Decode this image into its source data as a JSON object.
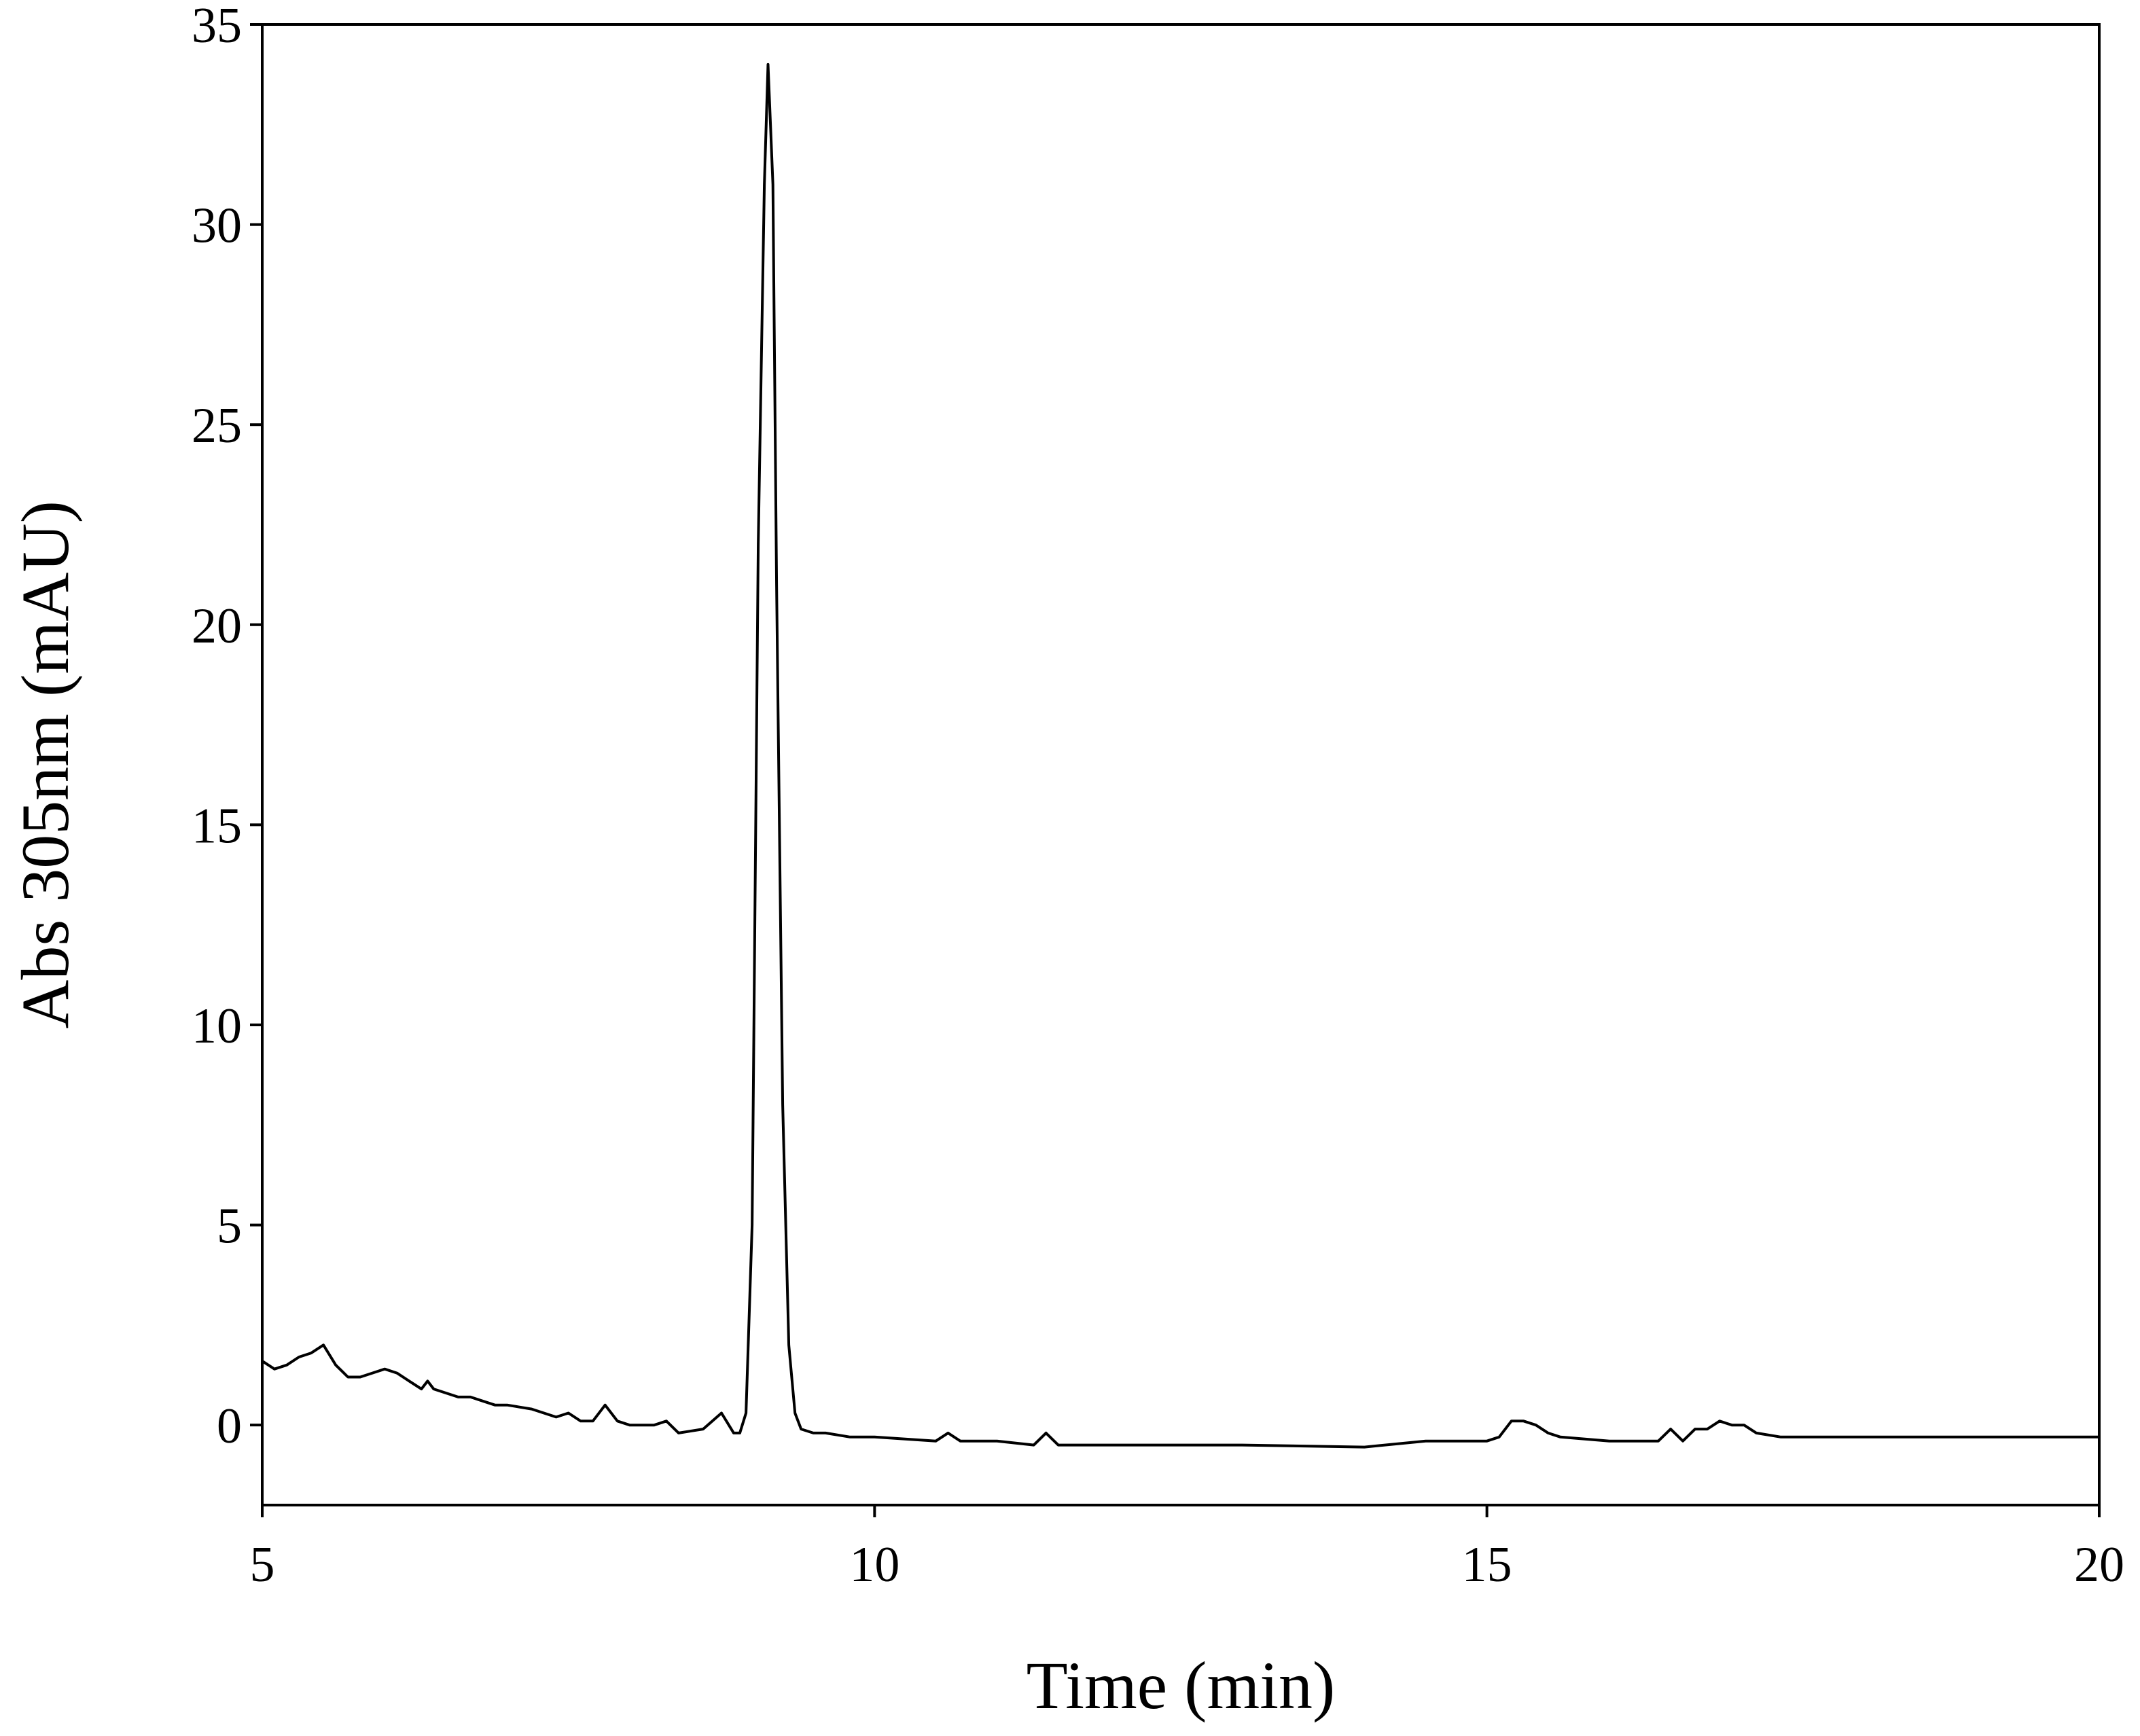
{
  "chart_data": {
    "type": "line",
    "x_label": "Time (min)",
    "y_label": "Abs 305nm (mAU)",
    "xlim": [
      5,
      20
    ],
    "ylim": [
      -2,
      35
    ],
    "xticks": [
      5,
      10,
      15,
      20
    ],
    "yticks": [
      0,
      5,
      10,
      15,
      20,
      25,
      30,
      35
    ],
    "series": [
      {
        "color": "#000000",
        "x": [
          5.0,
          5.1,
          5.2,
          5.3,
          5.4,
          5.5,
          5.6,
          5.7,
          5.8,
          5.9,
          6.0,
          6.1,
          6.2,
          6.3,
          6.35,
          6.4,
          6.5,
          6.6,
          6.7,
          6.8,
          6.9,
          7.0,
          7.2,
          7.4,
          7.5,
          7.6,
          7.7,
          7.8,
          7.9,
          8.0,
          8.2,
          8.3,
          8.4,
          8.6,
          8.75,
          8.85,
          8.9,
          8.95,
          9.0,
          9.05,
          9.1,
          9.13,
          9.17,
          9.2,
          9.25,
          9.3,
          9.35,
          9.4,
          9.5,
          9.6,
          9.8,
          10.0,
          10.5,
          10.6,
          10.7,
          11.0,
          11.3,
          11.4,
          11.5,
          12.0,
          13.0,
          14.0,
          14.5,
          15.0,
          15.1,
          15.2,
          15.3,
          15.4,
          15.5,
          15.6,
          16.0,
          16.4,
          16.5,
          16.6,
          16.7,
          16.8,
          16.9,
          17.0,
          17.1,
          17.2,
          17.4,
          18.0,
          19.0,
          20.0
        ],
        "values": [
          1.6,
          1.4,
          1.5,
          1.7,
          1.8,
          2.0,
          1.5,
          1.2,
          1.2,
          1.3,
          1.4,
          1.3,
          1.1,
          0.9,
          1.1,
          0.9,
          0.8,
          0.7,
          0.7,
          0.6,
          0.5,
          0.5,
          0.4,
          0.2,
          0.3,
          0.1,
          0.1,
          0.5,
          0.1,
          0.0,
          0.0,
          0.1,
          -0.2,
          -0.1,
          0.3,
          -0.2,
          -0.2,
          0.3,
          5,
          22,
          31,
          34,
          31,
          21,
          8,
          2,
          0.3,
          -0.1,
          -0.2,
          -0.2,
          -0.3,
          -0.3,
          -0.4,
          -0.2,
          -0.4,
          -0.4,
          -0.5,
          -0.2,
          -0.5,
          -0.5,
          -0.5,
          -0.55,
          -0.4,
          -0.4,
          -0.3,
          0.1,
          0.1,
          0.0,
          -0.2,
          -0.3,
          -0.4,
          -0.4,
          -0.1,
          -0.4,
          -0.1,
          -0.1,
          0.1,
          0.0,
          0.0,
          -0.2,
          -0.3,
          -0.3,
          -0.3,
          -0.3
        ]
      }
    ]
  }
}
